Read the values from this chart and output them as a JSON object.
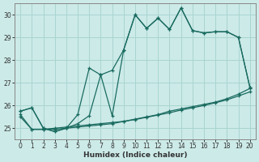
{
  "xlabel": "Humidex (Indice chaleur)",
  "xlim": [
    -0.5,
    20.5
  ],
  "ylim": [
    24.5,
    30.5
  ],
  "yticks": [
    25,
    26,
    27,
    28,
    29,
    30
  ],
  "xticks": [
    0,
    1,
    2,
    3,
    4,
    5,
    6,
    7,
    8,
    9,
    10,
    11,
    12,
    13,
    14,
    15,
    16,
    17,
    18,
    19,
    20
  ],
  "bg_color": "#cceae8",
  "line_color": "#1a6b60",
  "grid_color": "#a8d5d0",
  "series": [
    {
      "x": [
        0,
        1,
        2,
        3,
        4,
        5,
        6,
        7,
        8,
        9,
        10,
        11,
        12,
        13,
        14,
        15,
        16,
        17,
        18,
        19,
        20
      ],
      "y": [
        25.75,
        25.9,
        25.0,
        24.85,
        25.0,
        25.2,
        25.55,
        27.35,
        25.55,
        28.45,
        30.0,
        29.4,
        29.85,
        29.35,
        30.3,
        29.3,
        29.2,
        29.25,
        29.25,
        29.0,
        26.8
      ]
    },
    {
      "x": [
        0,
        1,
        2,
        3,
        4,
        5,
        6,
        7,
        8,
        9,
        10,
        11,
        12,
        13,
        14,
        15,
        16,
        17,
        18,
        19,
        20
      ],
      "y": [
        25.75,
        25.9,
        25.0,
        24.85,
        25.0,
        25.6,
        27.65,
        27.35,
        27.55,
        28.45,
        30.0,
        29.4,
        29.85,
        29.35,
        30.3,
        29.3,
        29.2,
        29.25,
        29.25,
        29.0,
        26.8
      ]
    },
    {
      "x": [
        0,
        1,
        2,
        3,
        4,
        5,
        6,
        7,
        8,
        9,
        10,
        11,
        12,
        13,
        14,
        15,
        16,
        17,
        18,
        19,
        20
      ],
      "y": [
        25.6,
        24.95,
        24.95,
        24.95,
        25.0,
        25.05,
        25.1,
        25.15,
        25.2,
        25.3,
        25.4,
        25.5,
        25.6,
        25.75,
        25.85,
        25.95,
        26.05,
        26.15,
        26.3,
        26.5,
        26.75
      ]
    },
    {
      "x": [
        0,
        1,
        2,
        3,
        4,
        5,
        6,
        7,
        8,
        9,
        10,
        11,
        12,
        13,
        14,
        15,
        16,
        17,
        18,
        19,
        20
      ],
      "y": [
        25.5,
        24.95,
        24.95,
        25.0,
        25.05,
        25.1,
        25.15,
        25.2,
        25.25,
        25.3,
        25.38,
        25.48,
        25.58,
        25.68,
        25.8,
        25.9,
        26.0,
        26.12,
        26.25,
        26.42,
        26.6
      ]
    }
  ]
}
